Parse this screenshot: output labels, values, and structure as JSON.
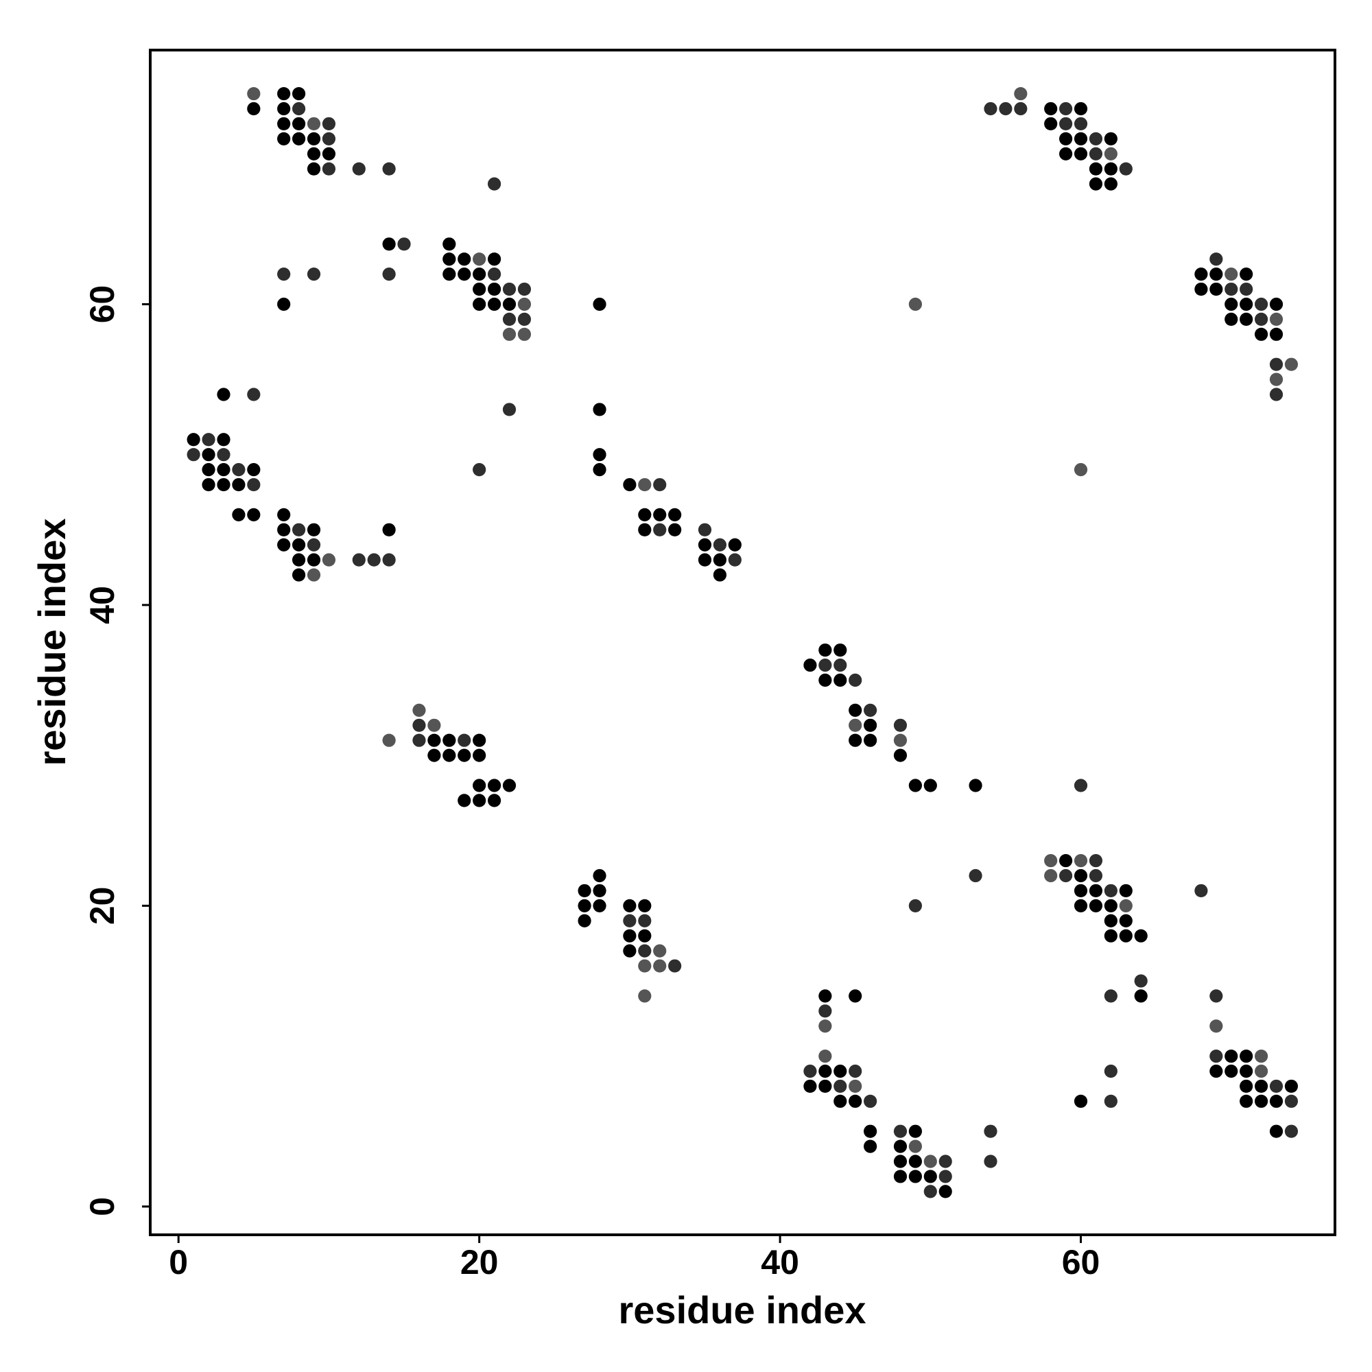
{
  "chart_data": {
    "type": "scatter",
    "x_label": "residue index",
    "y_label": "residue index",
    "xlim": [
      -1.88,
      76.9
    ],
    "ylim": [
      -1.88,
      76.9
    ],
    "xticks": [
      0,
      20,
      40,
      60
    ],
    "yticks": [
      0,
      20,
      40,
      60
    ],
    "series": [
      {
        "color": "#000000",
        "x": [
          5,
          7,
          8,
          7,
          7,
          8,
          7,
          8,
          9,
          9,
          10,
          9,
          14,
          7,
          18,
          18,
          19,
          21,
          18,
          19,
          20,
          20,
          21,
          20,
          21,
          22,
          28,
          3,
          28,
          1,
          3,
          2,
          2,
          3,
          5,
          2,
          3,
          4,
          4,
          5,
          28,
          28,
          30,
          31,
          32,
          33,
          31,
          33,
          35,
          37,
          35,
          36,
          36,
          7,
          7,
          9,
          7,
          8,
          8,
          9,
          8,
          14,
          43,
          44,
          42,
          43,
          44,
          45,
          46,
          45,
          46,
          48,
          49,
          50,
          53,
          17,
          18,
          20,
          17,
          18,
          19,
          20,
          20,
          21,
          22,
          19,
          20,
          21,
          59,
          60,
          60,
          61,
          63,
          60,
          61,
          62,
          62,
          63,
          62,
          63,
          64,
          27,
          28,
          28,
          27,
          28,
          27,
          30,
          31,
          30,
          31,
          30,
          64,
          43,
          45,
          43,
          44,
          42,
          43,
          44,
          45,
          46,
          46,
          49,
          48,
          48,
          49,
          48,
          49,
          50,
          51,
          60,
          70,
          71,
          69,
          70,
          71,
          71,
          72,
          74,
          71,
          72,
          73,
          73,
          58,
          60,
          58,
          59,
          60,
          62,
          59,
          60,
          61,
          62,
          61,
          62,
          68,
          69,
          71,
          68,
          69,
          70,
          71,
          73,
          70,
          71,
          72,
          73
        ],
        "y": [
          73,
          74,
          74,
          73,
          72,
          72,
          71,
          71,
          71,
          70,
          70,
          69,
          64,
          60,
          64,
          63,
          63,
          63,
          62,
          62,
          62,
          61,
          61,
          60,
          60,
          60,
          60,
          54,
          53,
          51,
          51,
          50,
          49,
          49,
          49,
          48,
          48,
          48,
          46,
          46,
          50,
          49,
          48,
          46,
          46,
          46,
          45,
          45,
          44,
          44,
          43,
          43,
          42,
          46,
          45,
          45,
          44,
          44,
          43,
          43,
          42,
          45,
          37,
          37,
          36,
          35,
          35,
          33,
          32,
          31,
          31,
          30,
          28,
          28,
          28,
          31,
          31,
          31,
          30,
          30,
          30,
          30,
          28,
          28,
          28,
          27,
          27,
          27,
          23,
          22,
          21,
          21,
          21,
          20,
          20,
          20,
          19,
          19,
          18,
          18,
          18,
          21,
          21,
          22,
          20,
          20,
          19,
          20,
          20,
          18,
          18,
          17,
          14,
          14,
          14,
          9,
          9,
          8,
          8,
          7,
          7,
          5,
          4,
          5,
          4,
          3,
          3,
          2,
          2,
          2,
          1,
          7,
          10,
          10,
          9,
          9,
          9,
          8,
          8,
          8,
          7,
          7,
          7,
          5,
          73,
          73,
          72,
          71,
          71,
          71,
          70,
          70,
          69,
          69,
          68,
          68,
          62,
          62,
          62,
          61,
          61,
          60,
          60,
          60,
          59,
          59,
          58,
          58
        ]
      },
      {
        "color": "#2e2e2e",
        "x": [
          10,
          8,
          10,
          10,
          12,
          14,
          21,
          15,
          7,
          9,
          14,
          21,
          22,
          23,
          22,
          23,
          5,
          22,
          2,
          1,
          3,
          4,
          5,
          20,
          32,
          32,
          35,
          36,
          37,
          8,
          9,
          12,
          13,
          14,
          43,
          44,
          45,
          46,
          48,
          60,
          16,
          16,
          19,
          53,
          61,
          59,
          61,
          62,
          68,
          30,
          31,
          31,
          33,
          49,
          64,
          62,
          69,
          43,
          42,
          45,
          44,
          46,
          48,
          51,
          51,
          50,
          54,
          54,
          62,
          62,
          69,
          73,
          74,
          74,
          54,
          55,
          56,
          59,
          59,
          60,
          61,
          61,
          63,
          69,
          70,
          71,
          72,
          72,
          73,
          73
        ],
        "y": [
          72,
          73,
          71,
          69,
          69,
          69,
          68,
          64,
          62,
          62,
          62,
          62,
          61,
          61,
          59,
          59,
          54,
          53,
          51,
          50,
          50,
          49,
          48,
          49,
          48,
          45,
          45,
          44,
          43,
          45,
          44,
          43,
          43,
          43,
          36,
          36,
          35,
          33,
          32,
          28,
          32,
          31,
          31,
          22,
          23,
          22,
          22,
          21,
          21,
          19,
          19,
          17,
          16,
          20,
          15,
          14,
          14,
          13,
          9,
          9,
          8,
          7,
          5,
          3,
          2,
          1,
          5,
          3,
          9,
          7,
          10,
          8,
          7,
          5,
          73,
          73,
          73,
          73,
          72,
          72,
          71,
          70,
          69,
          63,
          61,
          61,
          60,
          59,
          56,
          54
        ]
      },
      {
        "color": "#555555",
        "x": [
          5,
          9,
          20,
          23,
          22,
          23,
          31,
          10,
          9,
          45,
          48,
          14,
          16,
          17,
          58,
          60,
          58,
          63,
          32,
          31,
          32,
          31,
          69,
          43,
          43,
          45,
          49,
          50,
          72,
          72,
          60,
          49,
          56,
          62,
          70,
          73,
          74,
          73
        ],
        "y": [
          74,
          72,
          63,
          60,
          58,
          58,
          48,
          43,
          42,
          32,
          31,
          31,
          33,
          32,
          23,
          23,
          22,
          20,
          17,
          16,
          16,
          14,
          12,
          12,
          10,
          8,
          4,
          3,
          10,
          9,
          49,
          60,
          74,
          70,
          62,
          59,
          56,
          55
        ]
      }
    ]
  }
}
